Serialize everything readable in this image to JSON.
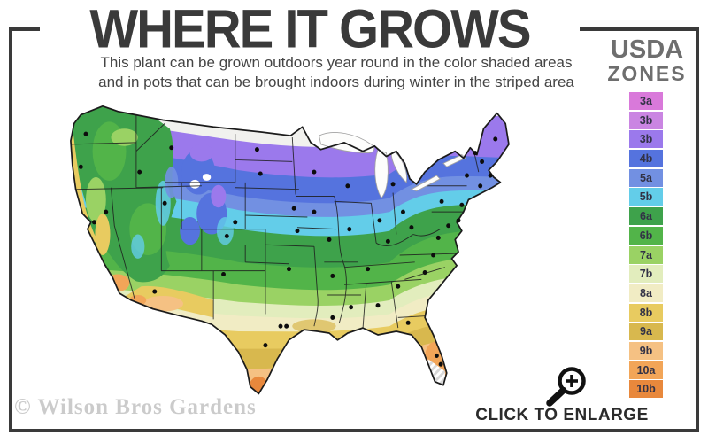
{
  "header": {
    "title": "WHERE IT GROWS",
    "subtitle_line1": "This plant can be grown outdoors year round in the color shaded areas",
    "subtitle_line2": "and in pots that can be brought indoors during winter in the striped area"
  },
  "legend": {
    "heading_line1": "USDA",
    "heading_line2": "ZONES",
    "zones": [
      {
        "label": "3a",
        "color": "#d979da"
      },
      {
        "label": "3b",
        "color": "#ca85e2"
      },
      {
        "label": "3b",
        "color": "#9b79ec"
      },
      {
        "label": "4b",
        "color": "#5573de"
      },
      {
        "label": "5a",
        "color": "#7290e2"
      },
      {
        "label": "5b",
        "color": "#63cde9"
      },
      {
        "label": "6a",
        "color": "#3ea24b"
      },
      {
        "label": "6b",
        "color": "#52b449"
      },
      {
        "label": "7a",
        "color": "#9ad264"
      },
      {
        "label": "7b",
        "color": "#e2edbd"
      },
      {
        "label": "8a",
        "color": "#f1ecc4"
      },
      {
        "label": "8b",
        "color": "#e8cb60"
      },
      {
        "label": "9a",
        "color": "#d8b84e"
      },
      {
        "label": "9b",
        "color": "#f5c183"
      },
      {
        "label": "10a",
        "color": "#f2a558"
      },
      {
        "label": "10b",
        "color": "#e8883c"
      }
    ]
  },
  "footer": {
    "enlarge_label": "CLICK TO ENLARGE",
    "watermark": "© Wilson Bros Gardens"
  },
  "colors": {
    "frame": "#3a3a3a",
    "title_text": "#3a3a3a",
    "zones_heading_text": "#6e6e6e",
    "watermark_text": "#cbcbcb"
  }
}
